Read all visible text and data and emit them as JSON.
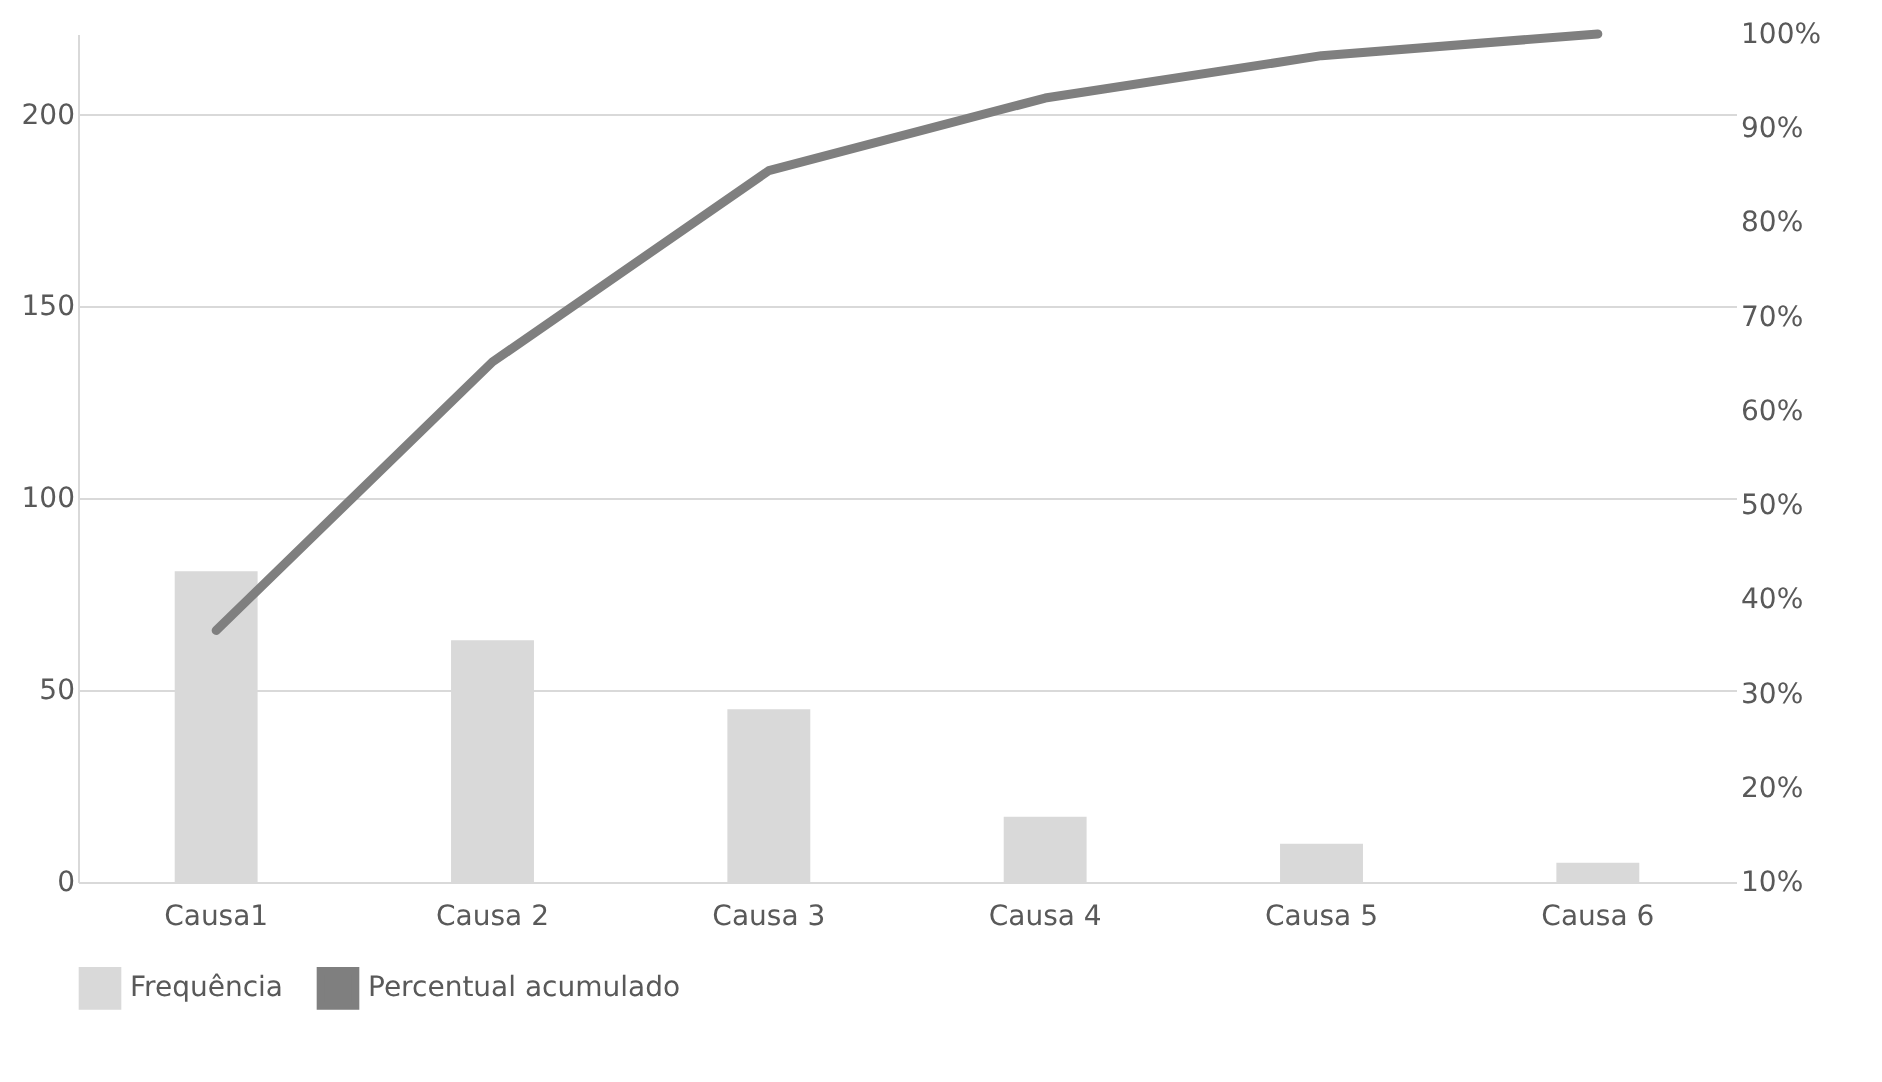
{
  "chart_data": {
    "type": "bar",
    "categories": [
      "Causa1",
      "Causa 2",
      "Causa 3",
      "Causa 4",
      "Causa 5",
      "Causa 6"
    ],
    "series": [
      {
        "name": "Frequência",
        "color": "#d9d9d9",
        "values": [
          81,
          63,
          45,
          17,
          10,
          5
        ]
      },
      {
        "name": "Percentual acumulado",
        "type": "line",
        "axis": "y2",
        "color": "#7f7f7f",
        "values": [
          36.7,
          65.2,
          85.5,
          93.2,
          97.7,
          100
        ]
      }
    ],
    "ylim": [
      0,
      221
    ],
    "yticks": [
      0,
      50,
      100,
      150,
      200
    ],
    "y2lim": [
      10,
      100
    ],
    "y2ticks": [
      {
        "value": 10,
        "label": "10%"
      },
      {
        "value": 20,
        "label": "20%"
      },
      {
        "value": 30,
        "label": "30%"
      },
      {
        "value": 40,
        "label": "40%"
      },
      {
        "value": 50,
        "label": "50%"
      },
      {
        "value": 60,
        "label": "60%"
      },
      {
        "value": 70,
        "label": "70%"
      },
      {
        "value": 80,
        "label": "80%"
      },
      {
        "value": 90,
        "label": "90%"
      },
      {
        "value": 100,
        "label": "100%"
      }
    ],
    "grid": "y",
    "legend": "bottom"
  }
}
